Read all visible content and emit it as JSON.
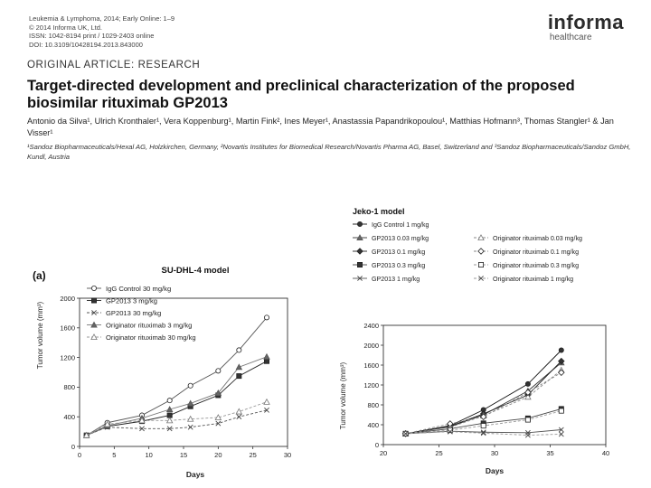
{
  "header": {
    "meta_lines": [
      "Leukemia & Lymphoma, 2014; Early Online: 1–9",
      "© 2014 Informa UK, Ltd.",
      "ISSN: 1042-8194 print / 1029-2403 online",
      "DOI: 10.3109/10428194.2013.843000"
    ],
    "logo_main": "informa",
    "logo_sub": "healthcare"
  },
  "article": {
    "section": "ORIGINAL ARTICLE: RESEARCH",
    "title": "Target-directed development and preclinical characterization of the proposed biosimilar rituximab GP2013",
    "authors": "Antonio da Silva¹, Ulrich Kronthaler¹, Vera Koppenburg¹, Martin Fink², Ines Meyer¹, Anastassia Papandrikopoulou¹, Matthias Hofmann³, Thomas Stangler¹ & Jan Visser¹",
    "affiliations": "¹Sandoz Biopharmaceuticals/Hexal AG, Holzkirchen, Germany, ²Novartis Institutes for Biomedical Research/Novartis Pharma AG, Basel, Switzerland and ³Sandoz Biopharmaceuticals/Sandoz GmbH, Kundl, Austria"
  },
  "chart_data": [
    {
      "type": "line",
      "panel_label": "(a)",
      "title": "SU-DHL-4 model",
      "xlabel": "Days",
      "ylabel": "Tumor volume (mm³)",
      "xlim": [
        0,
        30
      ],
      "ylim": [
        0,
        2000
      ],
      "xticks": [
        0,
        5,
        10,
        15,
        20,
        25,
        30
      ],
      "yticks": [
        0,
        400,
        800,
        1200,
        1600,
        2000
      ],
      "x": [
        1,
        4,
        9,
        13,
        16,
        20,
        23,
        27
      ],
      "series": [
        {
          "name": "IgG Control 30 mg/kg",
          "marker": "circle-open",
          "dash": "solid",
          "values": [
            150,
            320,
            420,
            620,
            820,
            1020,
            1300,
            1740
          ]
        },
        {
          "name": "GP2013 3 mg/kg",
          "marker": "square-filled",
          "dash": "solid",
          "values": [
            150,
            270,
            340,
            420,
            540,
            690,
            950,
            1150
          ]
        },
        {
          "name": "GP2013 30 mg/kg",
          "marker": "cross",
          "dash": "dashed",
          "values": [
            150,
            260,
            240,
            240,
            260,
            310,
            400,
            490
          ]
        },
        {
          "name": "Originator rituximab 3 mg/kg",
          "marker": "triangle-filled",
          "dash": "solid",
          "values": [
            150,
            280,
            380,
            500,
            580,
            720,
            1070,
            1210
          ]
        },
        {
          "name": "Originator rituximab 30 mg/kg",
          "marker": "triangle-open",
          "dash": "dashed",
          "values": [
            150,
            300,
            350,
            350,
            370,
            390,
            470,
            600
          ]
        }
      ]
    },
    {
      "type": "line",
      "title": "Jeko-1 model",
      "xlabel": "Days",
      "ylabel": "Tumor volume (mm³)",
      "xlim": [
        20,
        40
      ],
      "ylim": [
        0,
        2400
      ],
      "xticks": [
        20,
        25,
        30,
        35,
        40
      ],
      "yticks": [
        0,
        400,
        800,
        1200,
        1600,
        2000,
        2400
      ],
      "x": [
        22,
        26,
        29,
        33,
        36
      ],
      "series": [
        {
          "name": "IgG Control 1 mg/kg",
          "marker": "circle-filled",
          "dash": "solid",
          "values": [
            220,
            380,
            700,
            1220,
            1900
          ]
        },
        {
          "name": "GP2013 0.03 mg/kg",
          "marker": "triangle-filled",
          "dash": "solid",
          "values": [
            220,
            360,
            600,
            1080,
            1650
          ]
        },
        {
          "name": "GP2013 0.1 mg/kg",
          "marker": "diamond-filled",
          "dash": "solid",
          "values": [
            220,
            370,
            620,
            1000,
            1680
          ]
        },
        {
          "name": "GP2013 0.3 mg/kg",
          "marker": "square-filled",
          "dash": "solid",
          "values": [
            220,
            320,
            430,
            530,
            720
          ]
        },
        {
          "name": "GP2013 1 mg/kg",
          "marker": "cross",
          "dash": "solid",
          "values": [
            220,
            270,
            250,
            240,
            300
          ]
        },
        {
          "name": "Originator rituximab 0.03 mg/kg",
          "marker": "triangle-open",
          "dash": "dashed",
          "values": [
            220,
            350,
            580,
            960,
            1500
          ]
        },
        {
          "name": "Originator rituximab 0.1 mg/kg",
          "marker": "diamond-open",
          "dash": "dashed",
          "values": [
            220,
            420,
            560,
            1050,
            1450
          ]
        },
        {
          "name": "Originator rituximab 0.3 mg/kg",
          "marker": "square-open",
          "dash": "dashed",
          "values": [
            220,
            290,
            380,
            500,
            680
          ]
        },
        {
          "name": "Originator rituximab 1 mg/kg",
          "marker": "cross",
          "dash": "dashed",
          "values": [
            220,
            260,
            230,
            190,
            210
          ]
        }
      ]
    }
  ]
}
